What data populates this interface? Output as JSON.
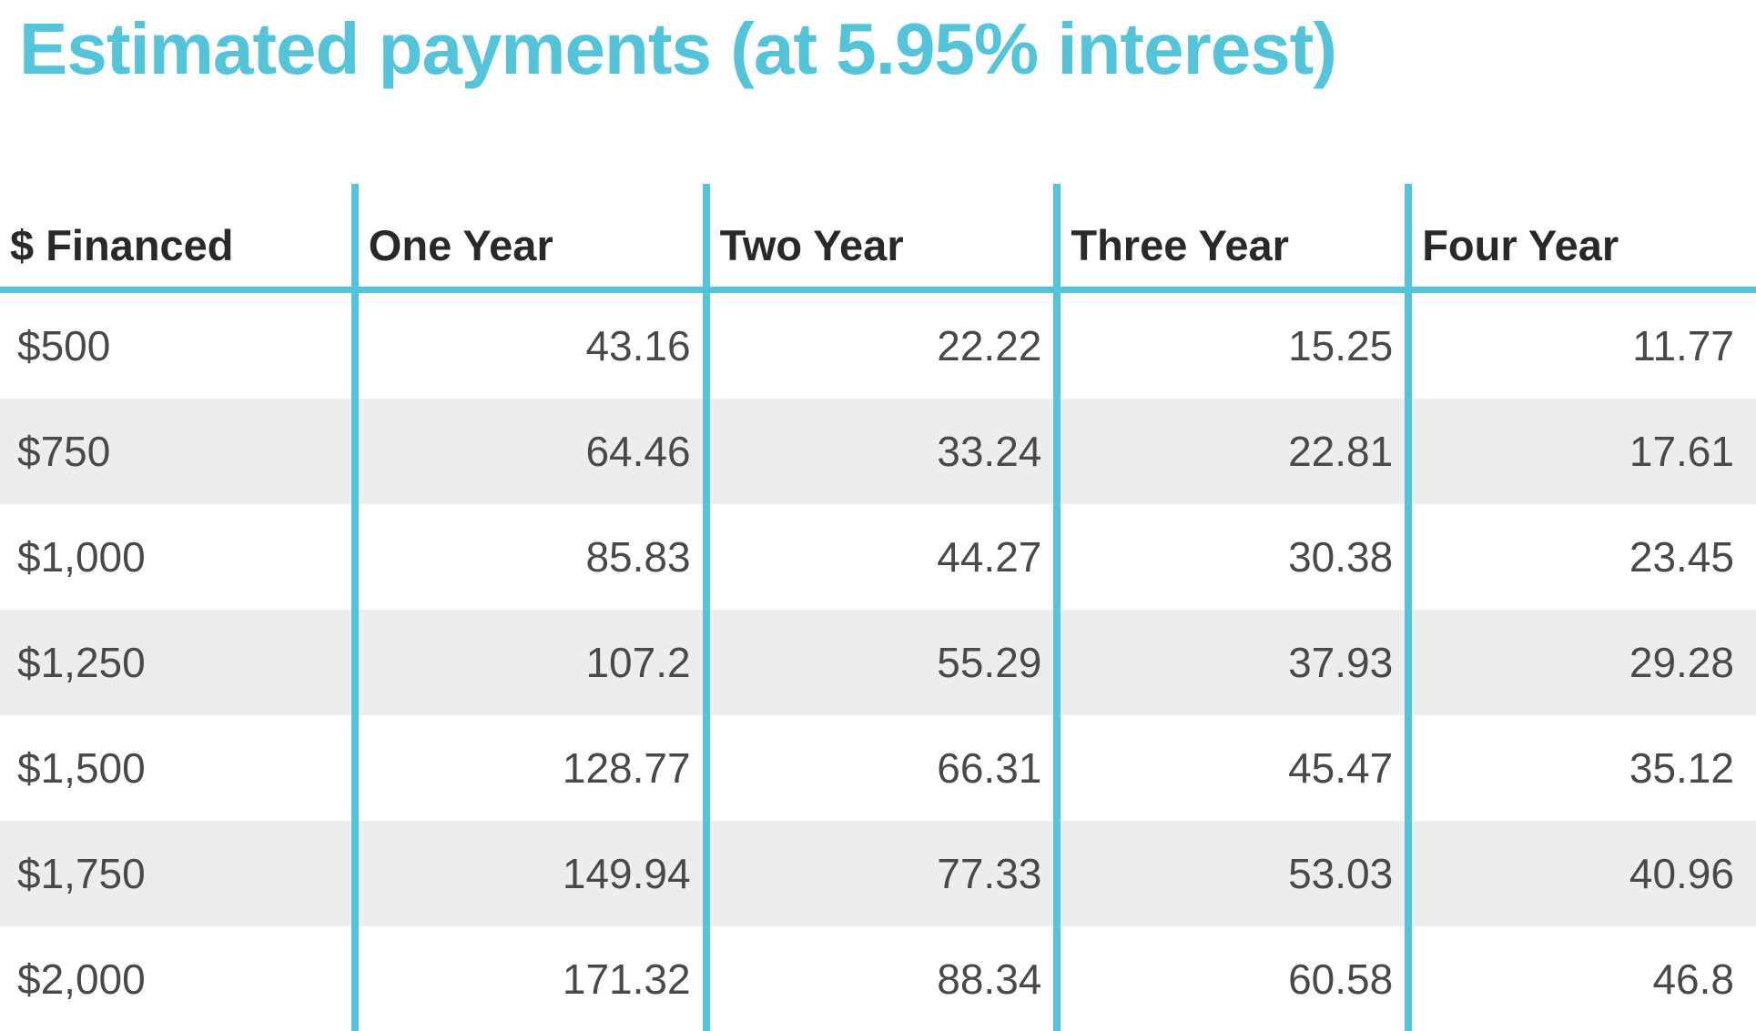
{
  "page_title": "Estimated payments (at 5.95% interest)",
  "colors": {
    "accent_teal": "#53c4d9",
    "header_text": "#27292b",
    "body_text": "#48494b",
    "alt_row_background": "#ededed",
    "background": "#ffffff"
  },
  "chart_data": {
    "type": "table",
    "title": "Estimated payments (at 5.95% interest)",
    "interest_rate": "5.95%",
    "columns": [
      "$ Financed",
      "One Year",
      "Two Year",
      "Three Year",
      "Four Year"
    ],
    "rows": [
      [
        "$500",
        "43.16",
        "22.22",
        "15.25",
        "11.77"
      ],
      [
        "$750",
        "64.46",
        "33.24",
        "22.81",
        "17.61"
      ],
      [
        "$1,000",
        "85.83",
        "44.27",
        "30.38",
        "23.45"
      ],
      [
        "$1,250",
        "107.2",
        "55.29",
        "37.93",
        "29.28"
      ],
      [
        "$1,500",
        "128.77",
        "66.31",
        "45.47",
        "35.12"
      ],
      [
        "$1,750",
        "149.94",
        "77.33",
        "53.03",
        "40.96"
      ],
      [
        "$2,000",
        "171.32",
        "88.34",
        "60.58",
        "46.8"
      ]
    ],
    "layout": {
      "alternating_row_shading": "rows 2, 4, 6 shaded light gray",
      "column_separators": "teal vertical rules",
      "header_underline": "teal horizontal rule",
      "value_alignment": "right-aligned numbers, left-aligned first column"
    }
  }
}
